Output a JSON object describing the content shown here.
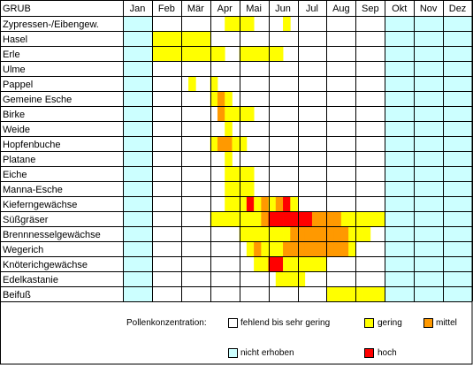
{
  "chart_data": {
    "type": "heatmap",
    "title": "GRUB",
    "months": [
      "Jan",
      "Feb",
      "Mär",
      "Apr",
      "Mai",
      "Jun",
      "Jul",
      "Aug",
      "Sep",
      "Okt",
      "Nov",
      "Dez"
    ],
    "levels": {
      "W": "fehlend bis sehr gering",
      "Y": "gering",
      "O": "mittel",
      "R": "hoch",
      "C": "nicht erhoben"
    },
    "colors": {
      "W": "#ffffff",
      "Y": "#ffff00",
      "O": "#ff9900",
      "R": "#ff0000",
      "C": "#ccffff"
    },
    "cell_note": "each month is split into 4 quarter-month cells; codes listed in month order",
    "rows": [
      {
        "name": "Zypressen-/Eibengew.",
        "cells": "CCCC WWWW WWWW WWYY YYWW WWYW WWWW WWWW WWWW CCCC CCCC CCCC"
      },
      {
        "name": "Hasel",
        "cells": "CCCC YYYY YYYY WWWW WWWW WWWW WWWW WWWW WWWW CCCC CCCC CCCC"
      },
      {
        "name": "Erle",
        "cells": "CCCC YYYY YYYY YYWW YYYY YYWW WWWW WWWW WWWW CCCC CCCC CCCC"
      },
      {
        "name": "Ulme",
        "cells": "CCCC WWWW WWWW WWWW WWWW WWWW WWWW WWWW WWWW CCCC CCCC CCCC"
      },
      {
        "name": "Pappel",
        "cells": "CCCC WWWW WYWW YWWW WWWW WWWW WWWW WWWW WWWW CCCC CCCC CCCC"
      },
      {
        "name": "Gemeine Esche",
        "cells": "CCCC WWWW WWWW YOYW WWWW WWWW WWWW WWWW WWWW CCCC CCCC CCCC"
      },
      {
        "name": "Birke",
        "cells": "CCCC WWWW WWWW WOYY YYWW WWWW WWWW WWWW WWWW CCCC CCCC CCCC"
      },
      {
        "name": "Weide",
        "cells": "CCCC WWWW WWWW WWYW WWWW WWWW WWWW WWWW WWWW CCCC CCCC CCCC"
      },
      {
        "name": "Hopfenbuche",
        "cells": "CCCC WWWW WWWW YOOY YWWW WWWW WWWW WWWW WWWW CCCC CCCC CCCC"
      },
      {
        "name": "Platane",
        "cells": "CCCC WWWW WWWW WWYW WWWW WWWW WWWW WWWW WWWW CCCC CCCC CCCC"
      },
      {
        "name": "Eiche",
        "cells": "CCCC WWWW WWWW WWYY YYWW WWWW WWWW WWWW WWWW CCCC CCCC CCCC"
      },
      {
        "name": "Manna-Esche",
        "cells": "CCCC WWWW WWWW WWYY YYWW WWWW WWWW WWWW WWWW CCCC CCCC CCCC"
      },
      {
        "name": "Kieferngewächse",
        "cells": "CCCC WWWW WWWW WWYY YRYO YORY WWWW WWWW WWWW CCCC CCCC CCCC"
      },
      {
        "name": "Süßgräser",
        "cells": "CCCC WWWW WWWW YYYY YYYO RRRR RROO OOYY YYYY CCCC CCCC CCCC"
      },
      {
        "name": "Brennnesselgewächse",
        "cells": "CCCC WWWW WWWW WWWW YYYY YYYO OOOO OOOY YYWW CCCC CCCC CCCC"
      },
      {
        "name": "Wegerich",
        "cells": "CCCC WWWW WWWW WWWW WYOY YYOO OOOO OOOY WWWW CCCC CCCC CCCC"
      },
      {
        "name": "Knöterichgewächse",
        "cells": "CCCC WWWW WWWW WWWW WWYY RRYY YYYY WWWW WWWW CCCC CCCC CCCC"
      },
      {
        "name": "Edelkastanie",
        "cells": "CCCC WWWW WWWW WWWW WWWW WYYY YWWW WWWW WWWW CCCC CCCC CCCC"
      },
      {
        "name": "Beifuß",
        "cells": "CCCC WWWW WWWW WWWW WWWW WWWW WWWW YYYY YYYY CCCC CCCC CCCC"
      }
    ]
  },
  "legend": {
    "title": "Pollenkonzentration:",
    "items": [
      {
        "code": "W",
        "label": "fehlend bis sehr gering"
      },
      {
        "code": "Y",
        "label": "gering"
      },
      {
        "code": "O",
        "label": "mittel"
      },
      {
        "code": "C",
        "label": "nicht erhoben"
      },
      {
        "code": "R",
        "label": "hoch"
      }
    ]
  }
}
